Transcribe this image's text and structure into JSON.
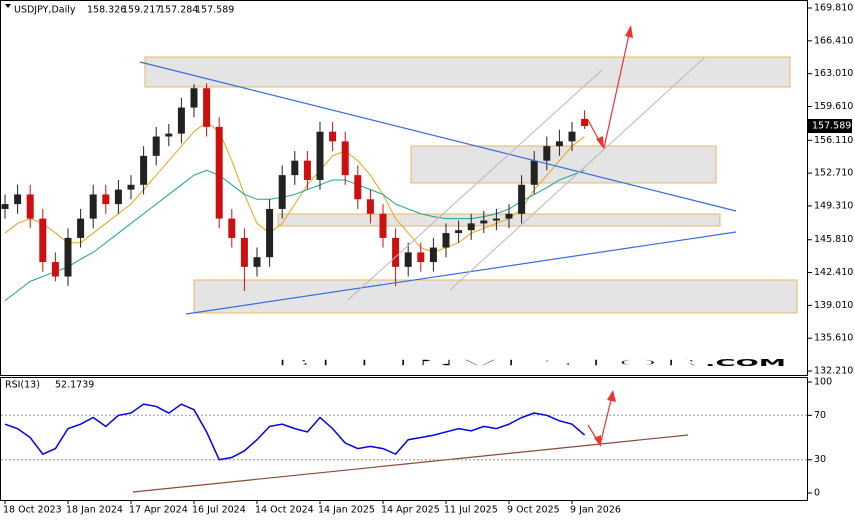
{
  "chart_data": [
    {
      "type": "candlestick",
      "title": "USDJPY,Daily",
      "categories": [
        "18 Oct 2023",
        null,
        null,
        null,
        null,
        "18 Jan 2024",
        null,
        null,
        null,
        null,
        "17 Apr 2024",
        null,
        null,
        null,
        null,
        "16 Jul 2024",
        null,
        null,
        null,
        null,
        "14 Oct 2024",
        null,
        null,
        null,
        null,
        "14 Jan 2025",
        null,
        null,
        null,
        null,
        "14 Apr 2025",
        null,
        null,
        null,
        null,
        "11 Jul 2025",
        null,
        null,
        null,
        null,
        "9 Oct 2025",
        null,
        null,
        null,
        null,
        "9 Jan 2026",
        null
      ],
      "open": [
        149,
        149.5,
        150.5,
        148,
        143.5,
        142,
        146,
        148,
        150.5,
        149.5,
        151,
        151.5,
        154.5,
        156.5,
        156.8,
        159.5,
        161.5,
        157.5,
        148,
        146,
        143,
        144,
        149,
        152.5,
        154,
        152,
        157,
        156,
        152.5,
        150,
        148.5,
        146,
        143,
        144.5,
        143.5,
        145,
        146.5,
        146.8,
        147.5,
        147.8,
        148,
        148.5,
        151.5,
        154,
        155.5,
        156,
        158.326
      ],
      "high": [
        150.5,
        151.5,
        151.5,
        149,
        144.5,
        147,
        149,
        151.5,
        151.5,
        152,
        152.5,
        155.5,
        157.5,
        157.8,
        160.5,
        161.9,
        162,
        158.5,
        149,
        147,
        145,
        150,
        153.5,
        155,
        155,
        158,
        158,
        157,
        153.5,
        151,
        149.5,
        147,
        145.5,
        145.5,
        146,
        147.5,
        147.8,
        148.5,
        148.8,
        149,
        149.5,
        152.5,
        155,
        156.5,
        157.2,
        158,
        159.217
      ],
      "low": [
        148,
        148.5,
        147,
        142.5,
        141.5,
        141,
        145,
        147,
        148.5,
        148.5,
        150,
        150.5,
        153.5,
        155.5,
        155.8,
        158.5,
        156.5,
        147,
        145,
        140.5,
        142,
        143,
        148,
        151.5,
        151,
        151,
        155,
        151.5,
        149,
        147.5,
        145,
        141,
        142,
        142.5,
        142.5,
        144,
        145.5,
        145.8,
        146.5,
        146.8,
        147,
        147.5,
        150.5,
        153,
        154.5,
        155,
        157.284
      ],
      "close": [
        149.5,
        150.5,
        148,
        143.5,
        142,
        146,
        148,
        150.5,
        149.5,
        151,
        151.5,
        154.5,
        156.5,
        156.8,
        159.5,
        161.5,
        157.5,
        148,
        146,
        143,
        144,
        149,
        152.5,
        154,
        152,
        157,
        156,
        152.5,
        150,
        148.5,
        146,
        143,
        144.5,
        143.5,
        145,
        146.5,
        146.8,
        147.5,
        147.8,
        148,
        148.5,
        151.5,
        154,
        155.5,
        156,
        157,
        157.589
      ],
      "up_color": "#222222",
      "down_color": "#cc1010",
      "series": [
        {
          "color": "#e8a317",
          "values": [
            146.5,
            147.5,
            148,
            147.5,
            146.5,
            145.5,
            145.5,
            146.5,
            147.5,
            148.5,
            149.5,
            151,
            152.5,
            154,
            155.5,
            157,
            158,
            157,
            154,
            150.5,
            147.5,
            146.5,
            147.5,
            149.5,
            151.5,
            153,
            154.5,
            155,
            154,
            152.5,
            150.5,
            148,
            146.5,
            145,
            144.5,
            145,
            145.5,
            146.5,
            147,
            147.5,
            148,
            149,
            151,
            152.5,
            154,
            155.5,
            156.5
          ]
        },
        {
          "color": "#1aa39a",
          "values": [
            139.5,
            140.5,
            141.5,
            142,
            142.5,
            143,
            143.8,
            144.5,
            145.5,
            146.5,
            147.5,
            148.5,
            149.5,
            150.5,
            151.5,
            152.5,
            153,
            152.5,
            151.5,
            150.5,
            150,
            150,
            150.2,
            150.5,
            151,
            151.5,
            152,
            152,
            151.5,
            151,
            150.5,
            149.5,
            149,
            148.5,
            148.2,
            148,
            148,
            148,
            148.2,
            148.5,
            149,
            149.8,
            150.5,
            151.2,
            152,
            152.5,
            153
          ]
        }
      ],
      "ylim": [
        131.8,
        170.64
      ],
      "yticks": [
        {
          "value": 169.81,
          "label": "169.810"
        },
        {
          "value": 166.41,
          "label": "166.410"
        },
        {
          "value": 163.01,
          "label": "163.010"
        },
        {
          "value": 159.61,
          "label": "159.610"
        },
        {
          "value": 156.11,
          "label": "156.110"
        },
        {
          "value": 152.71,
          "label": "152.710"
        },
        {
          "value": 149.31,
          "label": "149.310"
        },
        {
          "value": 145.81,
          "label": "145.810"
        },
        {
          "value": 142.41,
          "label": "142.410"
        },
        {
          "value": 139.01,
          "label": "139.010"
        },
        {
          "value": 135.61,
          "label": "135.610"
        },
        {
          "value": 132.21,
          "label": "132.210"
        }
      ],
      "watermark": [
        "BEL",
        "INVESTOR",
        ".COM"
      ]
    },
    {
      "type": "line",
      "title": "RSI(13)",
      "color": "#0000ee",
      "values": [
        62,
        58,
        50,
        35,
        40,
        58,
        62,
        68,
        60,
        70,
        72,
        80,
        78,
        72,
        80,
        75,
        55,
        30,
        32,
        38,
        48,
        60,
        62,
        58,
        55,
        68,
        58,
        45,
        40,
        42,
        40,
        35,
        48,
        50,
        52,
        55,
        58,
        56,
        60,
        58,
        62,
        68,
        72,
        70,
        65,
        62,
        52.1739
      ],
      "ylim": [
        -6.3,
        103.6
      ],
      "yticks": [
        100,
        70,
        30,
        0
      ],
      "levels": [
        70,
        30
      ]
    }
  ]
}
